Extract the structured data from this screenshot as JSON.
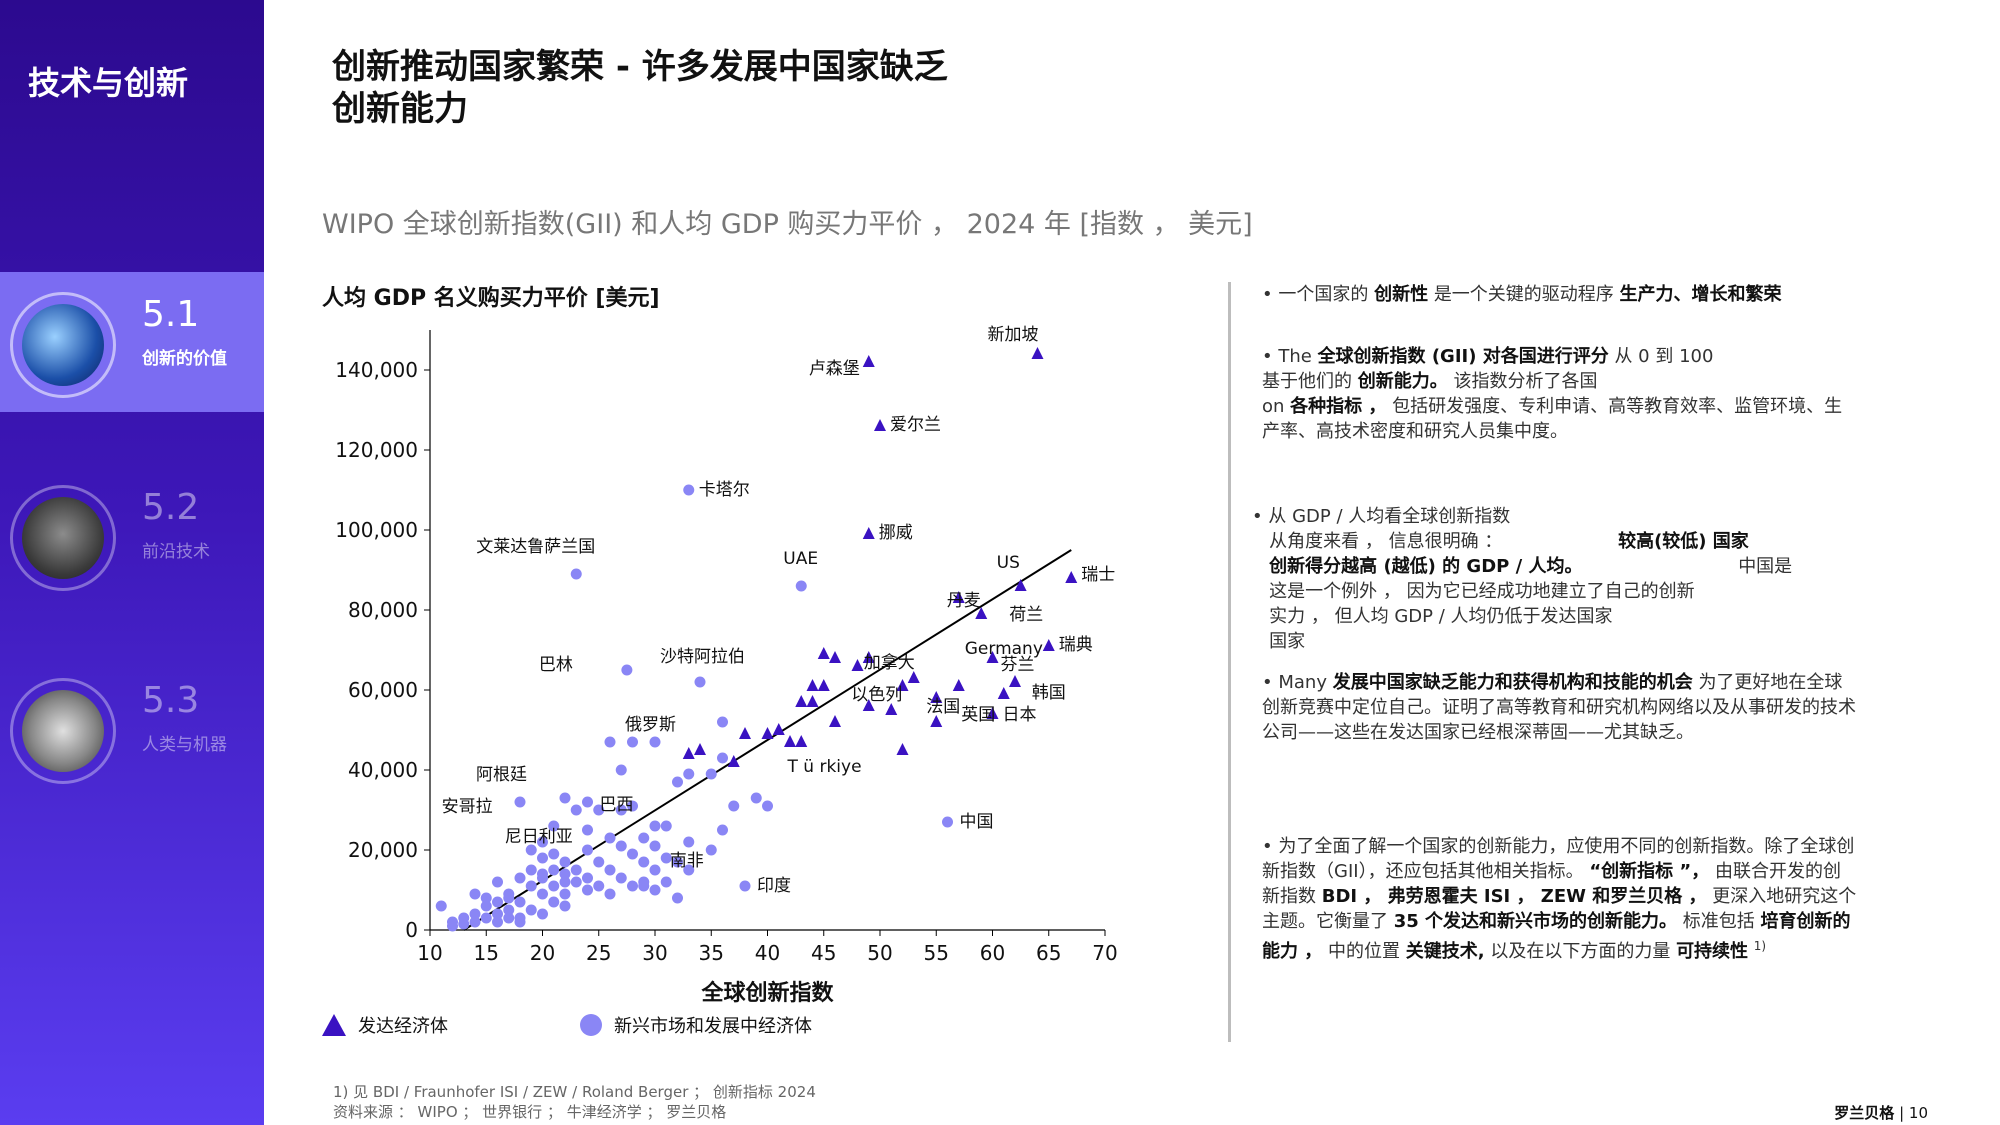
{
  "sidebar": {
    "title": "技术与创新",
    "items": [
      {
        "num": "5.1",
        "label": "创新的价值",
        "active": true
      },
      {
        "num": "5.2",
        "label": "前沿技术",
        "active": false
      },
      {
        "num": "5.3",
        "label": "人类与机器",
        "active": false
      }
    ]
  },
  "header": {
    "title_line1": "创新推动国家繁荣 - 许多发展中国家缺乏",
    "title_line2": "创新能力",
    "subtitle": "WIPO 全球创新指数(GII) 和人均 GDP 购买力平价 ， 2024 年 [指数 ， 美元]"
  },
  "colors": {
    "developed": "#3a12c2",
    "emerging": "#8a86f5",
    "accent": "#3d17b8"
  },
  "chart_data": {
    "type": "scatter",
    "title": "",
    "xlabel": "全球创新指数",
    "ylabel": "人均 GDP 名义购买力平价 [美元]",
    "xlim": [
      10,
      70
    ],
    "ylim": [
      0,
      150000
    ],
    "x_ticks": [
      10,
      15,
      20,
      25,
      30,
      35,
      40,
      45,
      50,
      55,
      60,
      65,
      70
    ],
    "y_ticks": [
      0,
      20000,
      40000,
      60000,
      80000,
      100000,
      120000,
      140000
    ],
    "y_tick_labels": [
      "0",
      "20,000",
      "40,000",
      "60,000",
      "80,000",
      "100,000",
      "120,000",
      "140,000"
    ],
    "trendline": [
      [
        13,
        0
      ],
      [
        67,
        95000
      ]
    ],
    "legend": {
      "placement": "bottom-left",
      "developed": "发达经济体",
      "emerging": "新兴市场和发展中经济体"
    },
    "series": [
      {
        "name": "发达经济体",
        "marker": "triangle",
        "points": [
          [
            64,
            144000
          ],
          [
            49,
            142000
          ],
          [
            50,
            126000
          ],
          [
            49,
            99000
          ],
          [
            67,
            88000
          ],
          [
            62.5,
            86000
          ],
          [
            59,
            79000
          ],
          [
            57,
            83000
          ],
          [
            65,
            71000
          ],
          [
            60,
            68000
          ],
          [
            62,
            62000
          ],
          [
            61,
            59000
          ],
          [
            57,
            61000
          ],
          [
            52,
            61000
          ],
          [
            53,
            63000
          ],
          [
            55,
            58000
          ],
          [
            48,
            66000
          ],
          [
            49,
            68000
          ],
          [
            45,
            69000
          ],
          [
            46,
            68000
          ],
          [
            44,
            61000
          ],
          [
            45,
            61000
          ],
          [
            43,
            57000
          ],
          [
            44,
            57000
          ],
          [
            46,
            52000
          ],
          [
            49,
            56000
          ],
          [
            55,
            52000
          ],
          [
            60,
            54000
          ],
          [
            52,
            45000
          ],
          [
            51,
            55000
          ],
          [
            41,
            50000
          ],
          [
            42,
            47000
          ],
          [
            43,
            47000
          ],
          [
            38,
            49000
          ],
          [
            33,
            44000
          ],
          [
            34,
            45000
          ],
          [
            37,
            42000
          ],
          [
            40,
            49000
          ]
        ]
      },
      {
        "name": "新兴市场和发展中经济体",
        "marker": "circle",
        "points": [
          [
            33,
            110000
          ],
          [
            23,
            89000
          ],
          [
            43,
            86000
          ],
          [
            27.5,
            65000
          ],
          [
            34,
            62000
          ],
          [
            28,
            47000
          ],
          [
            30,
            47000
          ],
          [
            36,
            52000
          ],
          [
            32,
            37000
          ],
          [
            33,
            39000
          ],
          [
            35,
            39000
          ],
          [
            36,
            43000
          ],
          [
            39,
            33000
          ],
          [
            40,
            31000
          ],
          [
            37,
            31000
          ],
          [
            56,
            27000
          ],
          [
            38,
            11000
          ],
          [
            26,
            47000
          ],
          [
            27,
            40000
          ],
          [
            22,
            33000
          ],
          [
            24,
            32000
          ],
          [
            25,
            30000
          ],
          [
            27,
            30000
          ],
          [
            28,
            31000
          ],
          [
            30,
            26000
          ],
          [
            31,
            26000
          ],
          [
            33,
            22000
          ],
          [
            35,
            20000
          ],
          [
            36,
            25000
          ],
          [
            29,
            23000
          ],
          [
            30,
            21000
          ],
          [
            31,
            18000
          ],
          [
            32,
            17000
          ],
          [
            33,
            15000
          ],
          [
            26,
            23000
          ],
          [
            27,
            21000
          ],
          [
            28,
            19000
          ],
          [
            29,
            17000
          ],
          [
            30,
            15000
          ],
          [
            31,
            12000
          ],
          [
            24,
            20000
          ],
          [
            25,
            17000
          ],
          [
            26,
            15000
          ],
          [
            27,
            13000
          ],
          [
            28,
            11000
          ],
          [
            29,
            11000
          ],
          [
            30,
            10000
          ],
          [
            22,
            17000
          ],
          [
            23,
            15000
          ],
          [
            24,
            13000
          ],
          [
            25,
            11000
          ],
          [
            26,
            9000
          ],
          [
            21,
            26000
          ],
          [
            20,
            22000
          ],
          [
            21,
            19000
          ],
          [
            22,
            14000
          ],
          [
            23,
            12000
          ],
          [
            24,
            10000
          ],
          [
            19,
            20000
          ],
          [
            20,
            18000
          ],
          [
            21,
            15000
          ],
          [
            22,
            12000
          ],
          [
            19,
            15000
          ],
          [
            20,
            13000
          ],
          [
            21,
            11000
          ],
          [
            22,
            9000
          ],
          [
            18,
            13000
          ],
          [
            19,
            11000
          ],
          [
            20,
            9000
          ],
          [
            21,
            7000
          ],
          [
            22,
            6000
          ],
          [
            17,
            9000
          ],
          [
            18,
            7000
          ],
          [
            19,
            5000
          ],
          [
            20,
            4000
          ],
          [
            16,
            7000
          ],
          [
            17,
            5000
          ],
          [
            18,
            3000
          ],
          [
            15,
            6000
          ],
          [
            16,
            4000
          ],
          [
            17,
            3000
          ],
          [
            14,
            4000
          ],
          [
            15,
            3000
          ],
          [
            16,
            2000
          ],
          [
            13,
            3000
          ],
          [
            14,
            2000
          ],
          [
            12,
            2000
          ],
          [
            13,
            1500
          ],
          [
            12,
            1000
          ],
          [
            15,
            8000
          ],
          [
            17,
            8000
          ],
          [
            18,
            2000
          ],
          [
            11,
            6000
          ],
          [
            14,
            9000
          ],
          [
            16,
            12000
          ],
          [
            18,
            32000
          ],
          [
            20,
            14000
          ],
          [
            23,
            30000
          ],
          [
            24,
            25000
          ],
          [
            29,
            12000
          ],
          [
            32,
            8000
          ]
        ]
      }
    ],
    "annotations": [
      {
        "text": "新加坡",
        "x": 64,
        "y": 144000
      },
      {
        "text": "卢森堡",
        "x": 49,
        "y": 142000
      },
      {
        "text": "爱尔兰",
        "x": 50,
        "y": 126000
      },
      {
        "text": "卡塔尔",
        "x": 33,
        "y": 110000
      },
      {
        "text": "挪威",
        "x": 49,
        "y": 99000
      },
      {
        "text": "文莱达鲁萨兰国",
        "x": 23,
        "y": 89000
      },
      {
        "text": "UAE",
        "x": 43,
        "y": 86000
      },
      {
        "text": "US",
        "x": 62.5,
        "y": 86000
      },
      {
        "text": "瑞士",
        "x": 67,
        "y": 88000
      },
      {
        "text": "丹麦",
        "x": 57,
        "y": 83000
      },
      {
        "text": "荷兰",
        "x": 59,
        "y": 79000
      },
      {
        "text": "Germany",
        "x": 57,
        "y": 70000
      },
      {
        "text": "瑞典",
        "x": 65,
        "y": 71000
      },
      {
        "text": "芬兰",
        "x": 60,
        "y": 66000
      },
      {
        "text": "加拿大",
        "x": 49,
        "y": 67000
      },
      {
        "text": "韩国",
        "x": 61,
        "y": 59000
      },
      {
        "text": "巴林",
        "x": 27.5,
        "y": 65000
      },
      {
        "text": "沙特阿拉伯",
        "x": 34,
        "y": 62000
      },
      {
        "text": "以色列",
        "x": 51,
        "y": 60000
      },
      {
        "text": "法国",
        "x": 55,
        "y": 56000
      },
      {
        "text": "英国",
        "x": 59,
        "y": 54000
      },
      {
        "text": "日本",
        "x": 60,
        "y": 54000
      },
      {
        "text": "俄罗斯",
        "x": 30,
        "y": 47000
      },
      {
        "text": "T ü rkiye",
        "x": 40,
        "y": 41000
      },
      {
        "text": "阿根廷",
        "x": 18,
        "y": 32000
      },
      {
        "text": "安哥拉",
        "x": 10.5,
        "y": 27000
      },
      {
        "text": "巴西",
        "x": 24,
        "y": 30000
      },
      {
        "text": "尼日利亚",
        "x": 17,
        "y": 22000
      },
      {
        "text": "中国",
        "x": 56,
        "y": 27000
      },
      {
        "text": "南非",
        "x": 29,
        "y": 18000
      },
      {
        "text": "印度",
        "x": 38,
        "y": 11000
      }
    ]
  },
  "bullets": {
    "b1_a": "一个国家的",
    "b1_b": "创新性",
    "b1_c": "是一个关键的驱动程序",
    "b1_d": "生产力、增长和繁荣",
    "b2_a": "The",
    "b2_b": "全球创新指数 (GII) 对各国进行评分",
    "b2_c": "从 0 到 100",
    "b2_d": "基于他们的",
    "b2_e": "创新能力。",
    "b2_f": "该指数分析了各国",
    "b2_g": "on",
    "b2_h": "各种指标 ，",
    "b2_i": "包括研发强度、专利申请、高等教育效率、监管环境、生",
    "b2_j": "产率、高技术密度和研究人员集中度。",
    "b3_a": "从 GDP / 人均看全球创新指数",
    "b3_b": "从角度来看 ， 信息很明确 ：",
    "b3_c": "较高(较低) 国家",
    "b3_d": "创新得分越高 (越低) 的 GDP / 人均。",
    "b3_e": "中国是",
    "b3_f": "这是一个例外 ， 因为它已经成功地建立了自己的创新",
    "b3_g": "实力 ， 但人均 GDP / 人均仍低于发达国家",
    "b3_h": "国家",
    "b4_a": "Many",
    "b4_b": "发展中国家缺乏能力和获得机构和技能的机会",
    "b4_c": "为了更好地在全球",
    "b4_d": "创新竞赛中定位自己。证明了高等教育和研究机构网络以及从事研发的技术",
    "b4_e": "公司——这些在发达国家已经根深蒂固——尤其缺乏。",
    "b5_a": "为了全面了解一个国家的创新能力，应使用不同的创新指数。除了全球创",
    "b5_b": "新指数（GII），还应包括其他相关指标。",
    "b5_c": "“创新指标 ”，",
    "b5_d": "由联合开发的创",
    "b5_e": "新指数",
    "b5_f": "BDI ， 弗劳恩霍夫 ISI ， ZEW 和罗兰贝格 ，",
    "b5_g": "更深入地研究这个",
    "b5_h": "主题。它衡量了",
    "b5_i": "35 个发达和新兴市场的创新能力。",
    "b5_j": "标准包括",
    "b5_k": "培育创新的",
    "b5_l": "能力 ，",
    "b5_m": "中的位置",
    "b5_n": "关键技术,",
    "b5_o": "以及在以下方面的力量",
    "b5_p": "可持续性",
    "b5_q": "1)"
  },
  "footer": {
    "note1": "1) 见 BDI / Fraunhofer ISI / ZEW / Roland Berger ； 创新指标 2024",
    "note2": "资料来源 ： WIPO ； 世界银行 ； 牛津经济学 ； 罗兰贝格",
    "brand": "罗兰贝格",
    "page": "10"
  }
}
